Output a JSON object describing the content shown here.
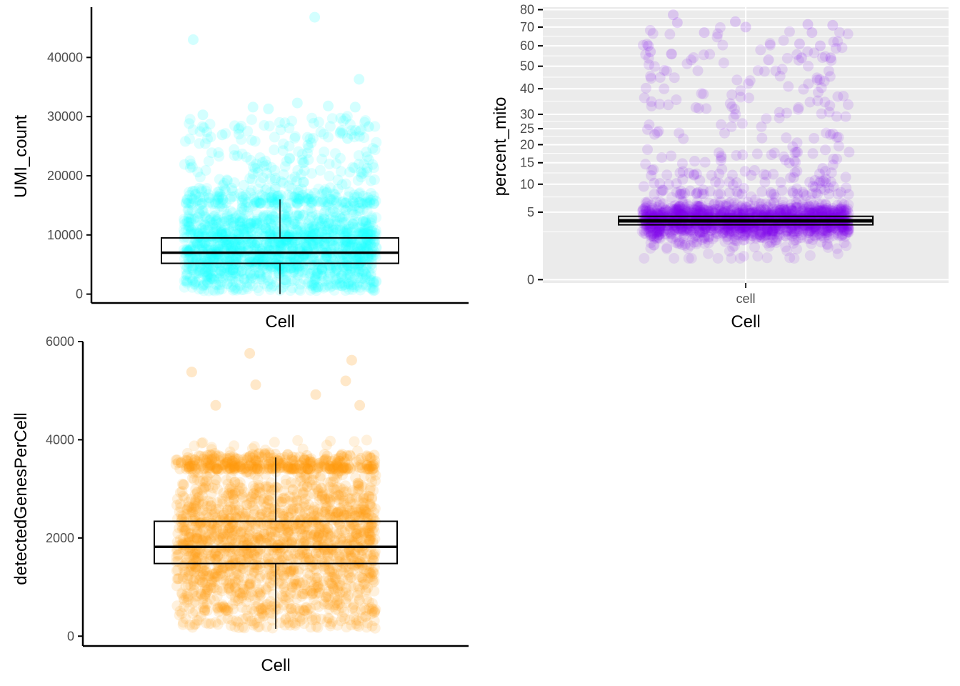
{
  "chart_data": [
    {
      "type": "scatter",
      "subtype": "jitter-boxplot",
      "panel": "top-left",
      "theme": "classic",
      "title": "",
      "xlabel": "Cell",
      "ylabel": "UMI_count",
      "categories": [
        ""
      ],
      "ylim": [
        -1500,
        48500
      ],
      "y_ticks": [
        0,
        10000,
        20000,
        30000,
        40000
      ],
      "y_tick_labels": [
        "0",
        "10000",
        "20000",
        "30000",
        "40000"
      ],
      "grid": false,
      "point_color": "#19ffff",
      "point_alpha": 0.12,
      "dense_range": [
        500,
        18000
      ],
      "box": {
        "lower_whisker": 0,
        "q1": 5200,
        "median": 7000,
        "q3": 9500,
        "upper_whisker": 16000
      },
      "notable_points": [
        {
          "x": -0.45,
          "y": 43000
        },
        {
          "x": 0.18,
          "y": 46800
        },
        {
          "x": 0.41,
          "y": 36300
        },
        {
          "x": -0.4,
          "y": 30300
        },
        {
          "x": -0.14,
          "y": 31600
        },
        {
          "x": -0.06,
          "y": 31300
        },
        {
          "x": 0.09,
          "y": 32300
        },
        {
          "x": 0.25,
          "y": 31800
        },
        {
          "x": 0.39,
          "y": 31600
        },
        {
          "x": -0.3,
          "y": 26900
        },
        {
          "x": 0.35,
          "y": 26300
        },
        {
          "x": 0.46,
          "y": 28300
        }
      ]
    },
    {
      "type": "scatter",
      "subtype": "jitter-boxplot",
      "panel": "top-right",
      "theme": "gray",
      "title": "",
      "xlabel": "Cell",
      "ylabel": "percent_mito",
      "categories": [
        "cell"
      ],
      "y_scale": "sqrt",
      "ylim": [
        -1,
        81.5
      ],
      "y_ticks": [
        0,
        5,
        10,
        15,
        20,
        25,
        30,
        40,
        50,
        60,
        70,
        80
      ],
      "y_tick_labels": [
        "0",
        "5",
        "10",
        "15",
        "20",
        "25",
        "30",
        "40",
        "50",
        "60",
        "70",
        "80"
      ],
      "grid": true,
      "point_color": "#7e00f0",
      "point_alpha": 0.1,
      "dense_range": [
        0.5,
        8
      ],
      "box": {
        "lower_whisker": 1.5,
        "q1": 3.3,
        "median": 3.8,
        "q3": 4.4,
        "upper_whisker": 7
      },
      "notable_points": [
        {
          "x": -0.35,
          "y": 77
        },
        {
          "x": -0.33,
          "y": 72.5
        },
        {
          "x": -0.05,
          "y": 73
        },
        {
          "x": 0.0,
          "y": 70
        },
        {
          "x": 0.3,
          "y": 71.5
        },
        {
          "x": 0.42,
          "y": 71
        },
        {
          "x": -0.2,
          "y": 67
        },
        {
          "x": 0.32,
          "y": 67
        },
        {
          "x": -0.47,
          "y": 60
        },
        {
          "x": -0.46,
          "y": 57
        },
        {
          "x": 0.26,
          "y": 61
        },
        {
          "x": 0.36,
          "y": 60
        },
        {
          "x": 0.11,
          "y": 53
        },
        {
          "x": 0.27,
          "y": 54
        },
        {
          "x": 0.41,
          "y": 54
        }
      ]
    },
    {
      "type": "scatter",
      "subtype": "jitter-boxplot",
      "panel": "bottom-left",
      "theme": "classic",
      "title": "",
      "xlabel": "Cell",
      "ylabel": "detectedGenesPerCell",
      "categories": [
        ""
      ],
      "ylim": [
        -200,
        6000
      ],
      "y_ticks": [
        0,
        2000,
        4000,
        6000
      ],
      "y_tick_labels": [
        "0",
        "2000",
        "4000",
        "6000"
      ],
      "grid": false,
      "point_color": "#ff9a0e",
      "point_alpha": 0.14,
      "dense_range": [
        500,
        4000
      ],
      "box": {
        "lower_whisker": 150,
        "q1": 1480,
        "median": 1820,
        "q3": 2340,
        "upper_whisker": 3640
      },
      "notable_points": [
        {
          "x": -0.42,
          "y": 5380
        },
        {
          "x": -0.13,
          "y": 5760
        },
        {
          "x": 0.38,
          "y": 5620
        },
        {
          "x": 0.35,
          "y": 5200
        },
        {
          "x": -0.1,
          "y": 5120
        },
        {
          "x": 0.2,
          "y": 4920
        },
        {
          "x": -0.3,
          "y": 4700
        },
        {
          "x": 0.42,
          "y": 4700
        }
      ]
    }
  ]
}
